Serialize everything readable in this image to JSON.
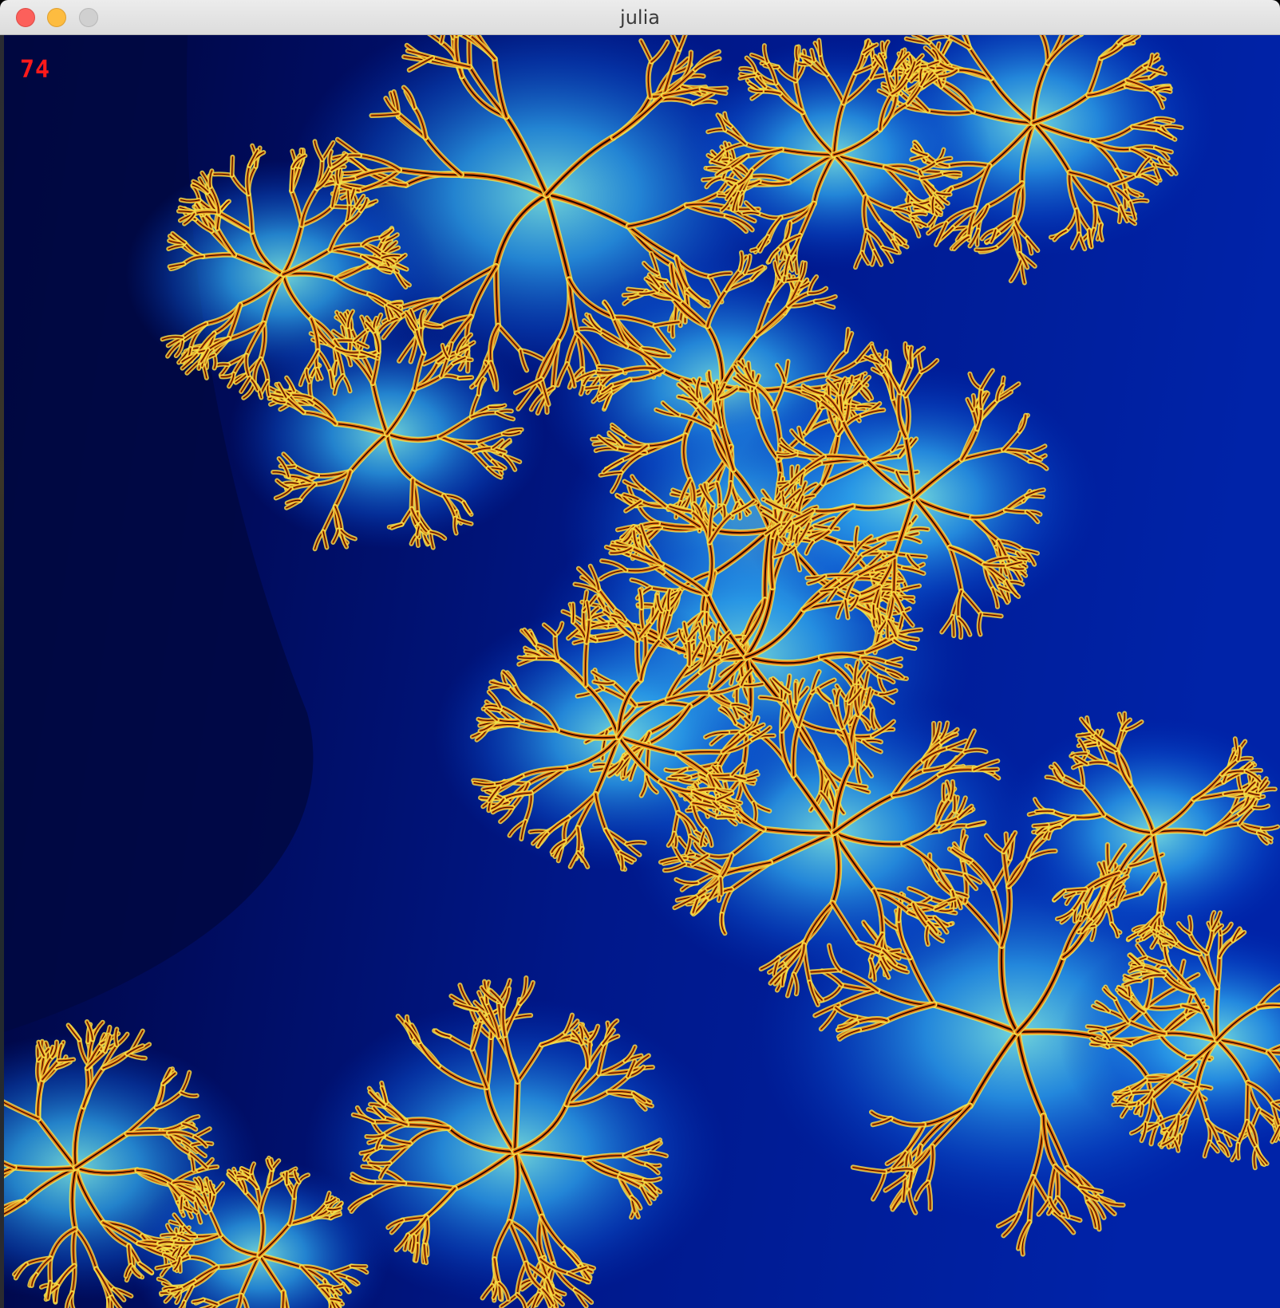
{
  "window": {
    "title": "julia"
  },
  "overlay": {
    "fps": "74"
  },
  "colors": {
    "background_deep": "#000a3c",
    "background_mid": "#00188a",
    "glow_blue": "#1f8fe6",
    "glow_cyan": "#5fd8e8",
    "fractal_yellow": "#f1e24a",
    "fractal_orange": "#e8700f",
    "fractal_core": "#2a0500",
    "fps_text": "#ff1a1a",
    "close_button": "#fc605b",
    "minimize_button": "#fdbc40",
    "zoom_button": "#d0d0d0"
  },
  "icons": {
    "close": "close-traffic-light-icon",
    "minimize": "minimize-traffic-light-icon",
    "zoom": "zoom-traffic-light-icon"
  }
}
